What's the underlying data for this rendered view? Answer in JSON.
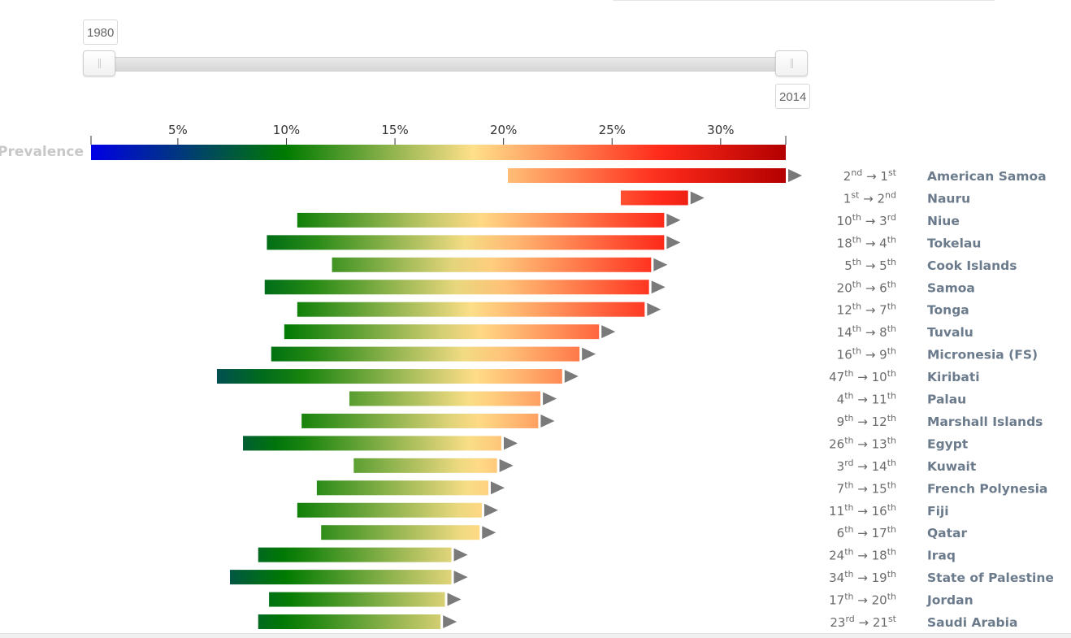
{
  "slider": {
    "start_label": "1980",
    "end_label": "2014"
  },
  "colors": {
    "scale": [
      "#0000e6",
      "#007a00",
      "#ffe08a",
      "#ff2a1a",
      "#b30000"
    ],
    "marker": "#7a7a7a"
  },
  "chart_data": {
    "type": "bar",
    "subtype": "range-arrow",
    "title": "",
    "scale_label": "Prevalence",
    "xaxis": {
      "min": 1,
      "max": 33,
      "ticks": [
        5,
        10,
        15,
        20,
        25,
        30
      ],
      "tick_labels": [
        "5%",
        "10%",
        "15%",
        "20%",
        "25%",
        "30%"
      ],
      "position": "top"
    },
    "grid": false,
    "legend": "none",
    "series": [
      {
        "country": "American Samoa",
        "start": 20.2,
        "end": 33.0,
        "rank_start": "2",
        "rank_start_suffix": "nd",
        "rank_end": "1",
        "rank_end_suffix": "st"
      },
      {
        "country": "Nauru",
        "start": 25.4,
        "end": 28.5,
        "rank_start": "1",
        "rank_start_suffix": "st",
        "rank_end": "2",
        "rank_end_suffix": "nd"
      },
      {
        "country": "Niue",
        "start": 10.5,
        "end": 27.4,
        "rank_start": "10",
        "rank_start_suffix": "th",
        "rank_end": "3",
        "rank_end_suffix": "rd"
      },
      {
        "country": "Tokelau",
        "start": 9.1,
        "end": 27.4,
        "rank_start": "18",
        "rank_start_suffix": "th",
        "rank_end": "4",
        "rank_end_suffix": "th"
      },
      {
        "country": "Cook Islands",
        "start": 12.1,
        "end": 26.8,
        "rank_start": "5",
        "rank_start_suffix": "th",
        "rank_end": "5",
        "rank_end_suffix": "th"
      },
      {
        "country": "Samoa",
        "start": 9.0,
        "end": 26.7,
        "rank_start": "20",
        "rank_start_suffix": "th",
        "rank_end": "6",
        "rank_end_suffix": "th"
      },
      {
        "country": "Tonga",
        "start": 10.5,
        "end": 26.5,
        "rank_start": "12",
        "rank_start_suffix": "th",
        "rank_end": "7",
        "rank_end_suffix": "th"
      },
      {
        "country": "Tuvalu",
        "start": 9.9,
        "end": 24.4,
        "rank_start": "14",
        "rank_start_suffix": "th",
        "rank_end": "8",
        "rank_end_suffix": "th"
      },
      {
        "country": "Micronesia (FS)",
        "start": 9.3,
        "end": 23.5,
        "rank_start": "16",
        "rank_start_suffix": "th",
        "rank_end": "9",
        "rank_end_suffix": "th"
      },
      {
        "country": "Kiribati",
        "start": 6.8,
        "end": 22.7,
        "rank_start": "47",
        "rank_start_suffix": "th",
        "rank_end": "10",
        "rank_end_suffix": "th"
      },
      {
        "country": "Palau",
        "start": 12.9,
        "end": 21.7,
        "rank_start": "4",
        "rank_start_suffix": "th",
        "rank_end": "11",
        "rank_end_suffix": "th"
      },
      {
        "country": "Marshall Islands",
        "start": 10.7,
        "end": 21.6,
        "rank_start": "9",
        "rank_start_suffix": "th",
        "rank_end": "12",
        "rank_end_suffix": "th"
      },
      {
        "country": "Egypt",
        "start": 8.0,
        "end": 19.9,
        "rank_start": "26",
        "rank_start_suffix": "th",
        "rank_end": "13",
        "rank_end_suffix": "th"
      },
      {
        "country": "Kuwait",
        "start": 13.1,
        "end": 19.7,
        "rank_start": "3",
        "rank_start_suffix": "rd",
        "rank_end": "14",
        "rank_end_suffix": "th"
      },
      {
        "country": "French Polynesia",
        "start": 11.4,
        "end": 19.3,
        "rank_start": "7",
        "rank_start_suffix": "th",
        "rank_end": "15",
        "rank_end_suffix": "th"
      },
      {
        "country": "Fiji",
        "start": 10.5,
        "end": 19.0,
        "rank_start": "11",
        "rank_start_suffix": "th",
        "rank_end": "16",
        "rank_end_suffix": "th"
      },
      {
        "country": "Qatar",
        "start": 11.6,
        "end": 18.9,
        "rank_start": "6",
        "rank_start_suffix": "th",
        "rank_end": "17",
        "rank_end_suffix": "th"
      },
      {
        "country": "Iraq",
        "start": 8.7,
        "end": 17.6,
        "rank_start": "24",
        "rank_start_suffix": "th",
        "rank_end": "18",
        "rank_end_suffix": "th"
      },
      {
        "country": "State of Palestine",
        "start": 7.4,
        "end": 17.6,
        "rank_start": "34",
        "rank_start_suffix": "th",
        "rank_end": "19",
        "rank_end_suffix": "th"
      },
      {
        "country": "Jordan",
        "start": 9.2,
        "end": 17.3,
        "rank_start": "17",
        "rank_start_suffix": "th",
        "rank_end": "20",
        "rank_end_suffix": "th"
      },
      {
        "country": "Saudi Arabia",
        "start": 8.7,
        "end": 17.1,
        "rank_start": "23",
        "rank_start_suffix": "rd",
        "rank_end": "21",
        "rank_end_suffix": "st"
      }
    ]
  }
}
